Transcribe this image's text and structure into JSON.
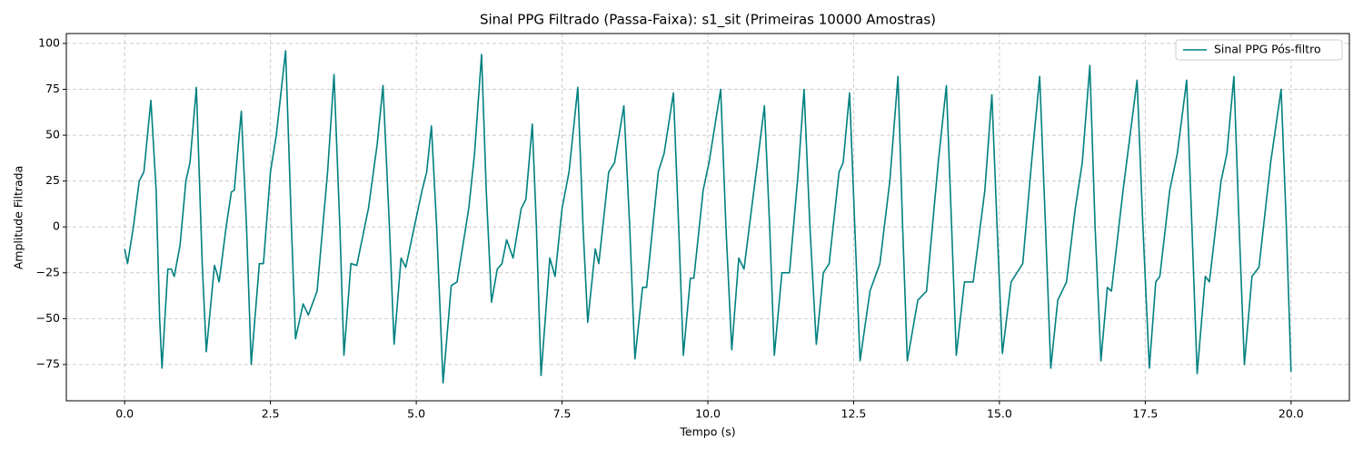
{
  "chart_data": {
    "type": "line",
    "title": "Sinal PPG Filtrado (Passa-Faixa): s1_sit (Primeiras 10000 Amostras)",
    "xlabel": "Tempo (s)",
    "ylabel": "Amplitude Filtrada",
    "xlim": [
      -1,
      21
    ],
    "ylim": [
      -94.8,
      105.4
    ],
    "xticks": [
      {
        "value": 0,
        "label": "0.0"
      },
      2.5,
      {
        "value": 5,
        "label": "5.0"
      },
      7.5,
      {
        "value": 10,
        "label": "10.0"
      },
      12.5,
      {
        "value": 15,
        "label": "15.0"
      },
      17.5,
      {
        "value": 20,
        "label": "20.0"
      }
    ],
    "yticks": [
      {
        "value": -75,
        "label": "−75"
      },
      {
        "value": -50,
        "label": "−50"
      },
      {
        "value": -25,
        "label": "−25"
      },
      0,
      25,
      50,
      75,
      100
    ],
    "grid": true,
    "legend": "upper right",
    "series": [
      {
        "name": "Sinal PPG Pós-filtro",
        "color": "#008080",
        "x": [
          0,
          0.05,
          0.15,
          0.25,
          0.33,
          0.45,
          0.54,
          0.6,
          0.64,
          0.74,
          0.8,
          0.85,
          0.95,
          1.05,
          1.12,
          1.23,
          1.33,
          1.4,
          1.54,
          1.58,
          1.62,
          1.74,
          1.83,
          1.88,
          2.0,
          2.09,
          2.17,
          2.31,
          2.38,
          2.5,
          2.6,
          2.76,
          2.86,
          2.93,
          3.06,
          3.15,
          3.3,
          3.48,
          3.59,
          3.69,
          3.76,
          3.88,
          3.98,
          4.18,
          4.33,
          4.43,
          4.54,
          4.62,
          4.74,
          4.82,
          5.0,
          5.1,
          5.18,
          5.26,
          5.35,
          5.46,
          5.6,
          5.7,
          5.9,
          6.0,
          6.12,
          6.2,
          6.29,
          6.39,
          6.47,
          6.55,
          6.66,
          6.8,
          6.88,
          6.99,
          7.06,
          7.14,
          7.29,
          7.38,
          7.5,
          7.62,
          7.77,
          7.86,
          7.94,
          8.07,
          8.13,
          8.3,
          8.4,
          8.56,
          8.66,
          8.75,
          8.88,
          8.95,
          9.15,
          9.25,
          9.41,
          9.5,
          9.58,
          9.7,
          9.76,
          9.92,
          10.02,
          10.22,
          10.31,
          10.41,
          10.53,
          10.62,
          10.75,
          10.85,
          10.97,
          11.06,
          11.14,
          11.27,
          11.4,
          11.55,
          11.65,
          11.75,
          11.86,
          11.98,
          12.08,
          12.25,
          12.32,
          12.43,
          12.52,
          12.61,
          12.78,
          12.95,
          13.12,
          13.26,
          13.34,
          13.42,
          13.6,
          13.75,
          13.95,
          14.09,
          14.18,
          14.26,
          14.4,
          14.55,
          14.75,
          14.87,
          14.96,
          15.05,
          15.2,
          15.4,
          15.55,
          15.69,
          15.79,
          15.88,
          16.0,
          16.15,
          16.3,
          16.42,
          16.55,
          16.64,
          16.74,
          16.85,
          16.92,
          17.12,
          17.36,
          17.46,
          17.57,
          17.68,
          17.75,
          17.92,
          18.05,
          18.21,
          18.3,
          18.39,
          18.53,
          18.6,
          18.8,
          18.9,
          19.02,
          19.11,
          19.2,
          19.33,
          19.45,
          19.65,
          19.83,
          19.92,
          20.0
        ],
        "values": [
          -12,
          -20,
          0,
          25,
          30,
          69,
          20,
          -50,
          -77,
          -23,
          -23,
          -27,
          -10,
          25,
          35,
          76,
          -20,
          -68,
          -21,
          -25,
          -30,
          0,
          19,
          20,
          63,
          0,
          -75,
          -20,
          -20,
          30,
          50,
          96,
          0,
          -61,
          -42,
          -48,
          -35,
          30,
          83,
          0,
          -70,
          -20,
          -21,
          10,
          45,
          77,
          0,
          -64,
          -17,
          -22,
          5,
          20,
          30,
          55,
          0,
          -85,
          -32,
          -30,
          10,
          40,
          94,
          20,
          -41,
          -23,
          -20,
          -7,
          -17,
          10,
          15,
          56,
          0,
          -81,
          -17,
          -27,
          10,
          30,
          76,
          0,
          -52,
          -12,
          -20,
          30,
          35,
          66,
          0,
          -72,
          -33,
          -33,
          30,
          40,
          73,
          0,
          -70,
          -28,
          -28,
          20,
          35,
          75,
          0,
          -67,
          -17,
          -23,
          10,
          35,
          66,
          0,
          -70,
          -25,
          -25,
          30,
          75,
          0,
          -64,
          -25,
          -20,
          30,
          35,
          73,
          0,
          -73,
          -35,
          -20,
          25,
          82,
          0,
          -73,
          -40,
          -35,
          35,
          77,
          0,
          -70,
          -30,
          -30,
          20,
          72,
          0,
          -69,
          -30,
          -20,
          35,
          82,
          0,
          -77,
          -40,
          -30,
          10,
          35,
          88,
          0,
          -73,
          -33,
          -35,
          20,
          80,
          0,
          -77,
          -30,
          -27,
          20,
          40,
          80,
          0,
          -80,
          -27,
          -30,
          25,
          40,
          82,
          0,
          -75,
          -27,
          -22,
          35,
          75,
          0,
          -79
        ]
      }
    ]
  }
}
